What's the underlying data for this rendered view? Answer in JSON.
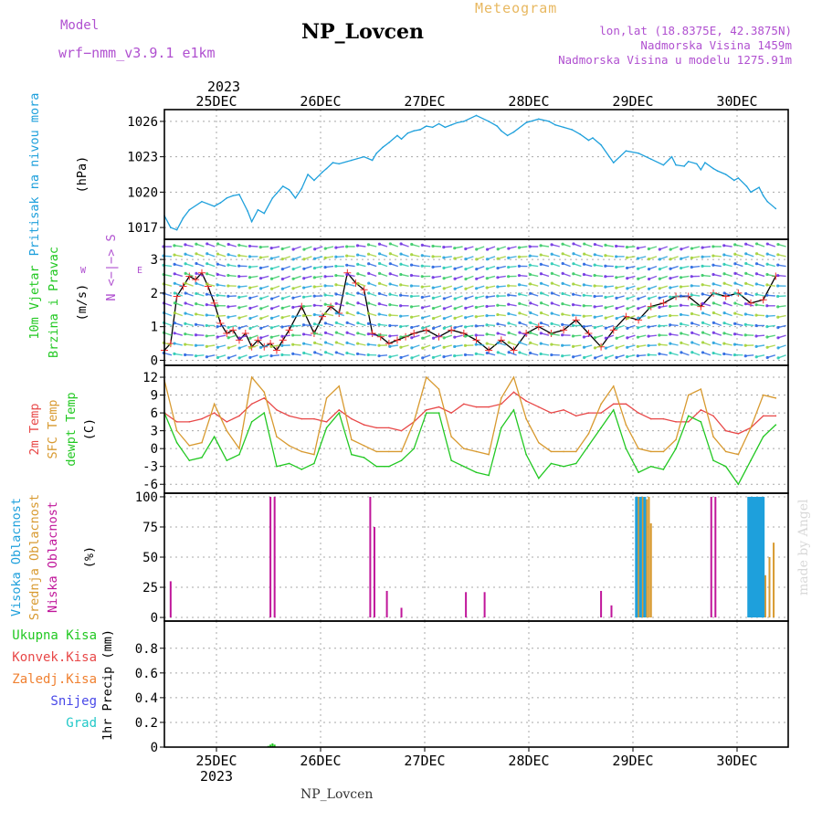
{
  "header": {
    "model_label": "Model",
    "model_name": "wrf−nmm_v3.9.1 e1km",
    "station": "NP_Lovcen",
    "meteogram_label": "Meteogram",
    "lonlat": "lon,lat (18.8375E, 42.3875N)",
    "elevation": "Nadmorska Visina 1459m",
    "model_elevation": "Nadmorska Visina u modelu 1275.91m"
  },
  "footer": {
    "station": "NP_Lovcen"
  },
  "watermark": "made by Angel",
  "colors": {
    "pressure": "#1ea0dc",
    "t2m": "#e84848",
    "sfc": "#d89a30",
    "dew": "#22c822",
    "low_cloud": "#c0169a",
    "mid_cloud": "#d89a30",
    "high_cloud": "#1ea0dc",
    "label_purple": "#b050d0",
    "grid": "#a8a8a8"
  },
  "chart_data": {
    "type": "line",
    "time_axis": {
      "year": "2023",
      "days": [
        "25DEC",
        "26DEC",
        "27DEC",
        "28DEC",
        "29DEC",
        "30DEC"
      ]
    },
    "panels": [
      {
        "name": "pressure",
        "type": "line",
        "ylabel_title": "Pritisak na nivou mora",
        "ylabel_unit": "(hPa)",
        "ylim": [
          1016,
          1027
        ],
        "yticks": [
          1017,
          1020,
          1023,
          1026
        ],
        "grid": true,
        "series": [
          {
            "x": [
              0,
              3,
              6,
              9,
              12,
              18,
              24,
              27,
              30,
              33,
              36,
              40,
              42,
              45,
              48,
              52,
              54,
              57,
              60,
              63,
              66,
              69,
              72,
              76,
              78,
              81,
              84,
              90,
              96,
              100,
              102,
              105,
              108,
              112,
              114,
              117,
              120,
              123,
              126,
              129,
              132,
              135,
              138,
              141,
              144,
              150,
              156,
              160,
              162,
              165,
              168,
              174,
              180,
              185,
              188,
              192,
              196,
              200,
              204,
              206,
              210,
              216,
              222,
              228,
              234,
              240,
              244,
              246,
              250,
              252,
              256,
              258,
              260,
              264,
              266,
              270,
              274,
              276,
              280,
              282,
              286,
              288,
              290,
              294
            ],
            "values": [
              1018.0,
              1017.0,
              1016.8,
              1017.8,
              1018.5,
              1019.2,
              1018.8,
              1019.1,
              1019.5,
              1019.7,
              1019.8,
              1018.4,
              1017.5,
              1018.5,
              1018.2,
              1019.5,
              1019.9,
              1020.5,
              1020.2,
              1019.5,
              1020.3,
              1021.5,
              1021.0,
              1021.7,
              1022.0,
              1022.5,
              1022.4,
              1022.7,
              1023.0,
              1022.7,
              1023.3,
              1023.8,
              1024.2,
              1024.8,
              1024.5,
              1025.0,
              1025.2,
              1025.3,
              1025.6,
              1025.5,
              1025.8,
              1025.5,
              1025.7,
              1025.9,
              1026.0,
              1026.5,
              1026.0,
              1025.6,
              1025.2,
              1024.8,
              1025.1,
              1025.9,
              1026.2,
              1026.0,
              1025.7,
              1025.5,
              1025.3,
              1024.9,
              1024.4,
              1024.6,
              1024.0,
              1022.5,
              1023.5,
              1023.3,
              1022.8,
              1022.3,
              1023.0,
              1022.3,
              1022.2,
              1022.6,
              1022.4,
              1021.9,
              1022.5,
              1022.0,
              1021.8,
              1021.5,
              1021.0,
              1021.2,
              1020.5,
              1020.0,
              1020.4,
              1019.7,
              1019.2,
              1018.6
            ]
          }
        ]
      },
      {
        "name": "wind",
        "type": "line",
        "ylabel_title1": "10m Vjetar",
        "ylabel_title2": "Brzina i Pravac",
        "ylabel_unit": "(m/s)",
        "compass_ns": "N <−|−> S",
        "compass_w": "W",
        "compass_e": "E",
        "ylim": [
          -0.15,
          3.6
        ],
        "yticks": [
          0,
          1,
          2,
          3
        ],
        "grid": true,
        "series": [
          {
            "name": "wind speed",
            "x": [
              0,
              3,
              6,
              9,
              12,
              15,
              18,
              21,
              24,
              27,
              30,
              33,
              36,
              39,
              42,
              45,
              48,
              51,
              54,
              57,
              60,
              66,
              72,
              76,
              80,
              84,
              88,
              92,
              96,
              100,
              104,
              108,
              112,
              116,
              120,
              126,
              132,
              138,
              144,
              150,
              156,
              162,
              168,
              174,
              180,
              186,
              192,
              198,
              204,
              210,
              216,
              222,
              228,
              234,
              240,
              246,
              252,
              258,
              264,
              270,
              276,
              282,
              288,
              294
            ],
            "values": [
              0.3,
              0.5,
              1.9,
              2.2,
              2.5,
              2.4,
              2.6,
              2.2,
              1.7,
              1.1,
              0.8,
              0.9,
              0.6,
              0.8,
              0.4,
              0.6,
              0.4,
              0.5,
              0.3,
              0.6,
              0.9,
              1.6,
              0.8,
              1.3,
              1.6,
              1.4,
              2.6,
              2.3,
              2.1,
              0.8,
              0.7,
              0.5,
              0.6,
              0.7,
              0.8,
              0.9,
              0.7,
              0.9,
              0.8,
              0.6,
              0.3,
              0.6,
              0.3,
              0.8,
              1.0,
              0.8,
              0.9,
              1.2,
              0.8,
              0.4,
              0.9,
              1.3,
              1.2,
              1.6,
              1.7,
              1.9,
              1.9,
              1.6,
              2.0,
              1.9,
              2.0,
              1.7,
              1.8,
              2.5
            ]
          }
        ]
      },
      {
        "name": "temperature",
        "type": "line",
        "ylabel_title1": "2m Temp",
        "ylabel_title2": "SFC Temp",
        "ylabel_title3": "dewpt Temp",
        "ylabel_unit": "(C)",
        "ylim": [
          -7.5,
          14
        ],
        "yticks": [
          -6,
          -3,
          0,
          3,
          6,
          9,
          12
        ],
        "grid": true,
        "series": [
          {
            "name": "2m Temp",
            "x": [
              0,
              6,
              12,
              18,
              24,
              30,
              36,
              42,
              48,
              54,
              60,
              66,
              72,
              78,
              84,
              90,
              96,
              102,
              108,
              114,
              120,
              126,
              132,
              138,
              144,
              150,
              156,
              162,
              168,
              174,
              180,
              186,
              192,
              198,
              204,
              210,
              216,
              222,
              228,
              234,
              240,
              246,
              252,
              258,
              264,
              270,
              276,
              282,
              288,
              294
            ],
            "values": [
              6,
              4.5,
              4.5,
              5,
              6,
              4.5,
              5.5,
              7.5,
              8.5,
              6.5,
              5.5,
              5,
              5,
              4.5,
              6.5,
              5,
              4,
              3.5,
              3.5,
              3,
              4.5,
              6.5,
              7,
              6,
              7.5,
              7,
              7,
              7.5,
              9.5,
              8,
              7,
              6,
              6.5,
              5.5,
              6,
              6,
              7.5,
              7.5,
              6,
              5,
              5,
              4.5,
              4.5,
              6.5,
              5.5,
              3,
              2.5,
              3.5,
              5.5,
              5.5
            ]
          },
          {
            "name": "SFC Temp",
            "x": [
              0,
              6,
              12,
              18,
              24,
              30,
              36,
              42,
              48,
              54,
              60,
              66,
              72,
              78,
              84,
              90,
              96,
              102,
              108,
              114,
              120,
              126,
              132,
              138,
              144,
              150,
              156,
              162,
              168,
              174,
              180,
              186,
              192,
              198,
              204,
              210,
              216,
              222,
              228,
              234,
              240,
              246,
              252,
              258,
              264,
              270,
              276,
              282,
              288,
              294
            ],
            "values": [
              11.5,
              3,
              0.5,
              1,
              7.5,
              3,
              0,
              12,
              9.5,
              2,
              0.5,
              -0.5,
              -1,
              8.5,
              10.5,
              1.5,
              0.5,
              -0.5,
              -0.5,
              -0.5,
              4.5,
              12,
              10,
              2,
              0,
              -0.5,
              -1,
              8.5,
              12,
              5,
              1,
              -0.5,
              -0.5,
              -0.5,
              2.5,
              7.5,
              10.5,
              4,
              0,
              -0.5,
              -0.5,
              1.5,
              9,
              10,
              2,
              -0.5,
              -1,
              3.5,
              9,
              8.5
            ]
          },
          {
            "name": "dewpt Temp",
            "x": [
              0,
              6,
              12,
              18,
              24,
              30,
              36,
              42,
              48,
              54,
              60,
              66,
              72,
              78,
              84,
              90,
              96,
              102,
              108,
              114,
              120,
              126,
              132,
              138,
              144,
              150,
              156,
              162,
              168,
              174,
              180,
              186,
              192,
              198,
              204,
              210,
              216,
              222,
              228,
              234,
              240,
              246,
              252,
              258,
              264,
              270,
              276,
              282,
              288,
              294
            ],
            "values": [
              6,
              1,
              -2,
              -1.5,
              2,
              -2,
              -1,
              4.5,
              6,
              -3,
              -2.5,
              -3.5,
              -2.5,
              3.5,
              6,
              -1,
              -1.5,
              -3,
              -3,
              -2,
              0,
              6,
              6,
              -2,
              -3,
              -4,
              -4.5,
              3.5,
              6.5,
              -1,
              -5,
              -2.5,
              -3,
              -2.5,
              0.5,
              3.5,
              6.5,
              0,
              -4,
              -3,
              -3.5,
              0,
              5.5,
              4.5,
              -2,
              -3,
              -6,
              -2,
              2,
              4
            ]
          }
        ]
      },
      {
        "name": "cloud",
        "type": "bar",
        "ylabel_title1": "Visoka Oblacnost",
        "ylabel_title2": "Srednja Oblacnost",
        "ylabel_title3": "Niska Oblacnost",
        "ylabel_unit": "(%)",
        "ylim": [
          -3,
          103
        ],
        "yticks": [
          0,
          25,
          50,
          75,
          100
        ],
        "grid": true,
        "series": [
          {
            "name": "Niska Oblacnost",
            "x": [
              3,
              51,
              53,
              99,
              101,
              107,
              114,
              145,
              154,
              210,
              215,
              263,
              265
            ],
            "values": [
              30,
              100,
              100,
              100,
              75,
              22,
              8,
              21,
              21,
              22,
              10,
              100,
              100
            ]
          },
          {
            "name": "Srednja Oblacnost",
            "x": [
              227,
              228,
              229,
              230,
              231,
              232,
              233,
              234,
              287,
              289,
              291,
              293
            ],
            "values": [
              98,
              100,
              100,
              100,
              99,
              98,
              100,
              78,
              15,
              35,
              50,
              62
            ]
          },
          {
            "name": "Visoka Oblacnost",
            "x": [
              227,
              229,
              231,
              281,
              282,
              283,
              284,
              285,
              286,
              287,
              288
            ],
            "values": [
              100,
              100,
              100,
              100,
              100,
              100,
              100,
              100,
              100,
              100,
              100
            ]
          }
        ]
      },
      {
        "name": "precip",
        "type": "bar",
        "legend": [
          "Ukupna Kisa",
          "Konvek.Kisa",
          "Zaledj.Kisa",
          "Snijeg",
          "Grad"
        ],
        "legend_colors": [
          "#22c822",
          "#e84848",
          "#f08030",
          "#4848e8",
          "#22c8c8"
        ],
        "ylabel_unit": "1hr Precip (mm)",
        "ylim": [
          0,
          1.02
        ],
        "yticks": [
          0,
          0.2,
          0.4,
          0.6,
          0.8
        ],
        "grid": true,
        "series": [
          {
            "name": "Ukupna Kisa",
            "x": [
              50,
              51,
              52,
              53
            ],
            "values": [
              0.01,
              0.02,
              0.03,
              0.02
            ]
          }
        ]
      }
    ]
  }
}
